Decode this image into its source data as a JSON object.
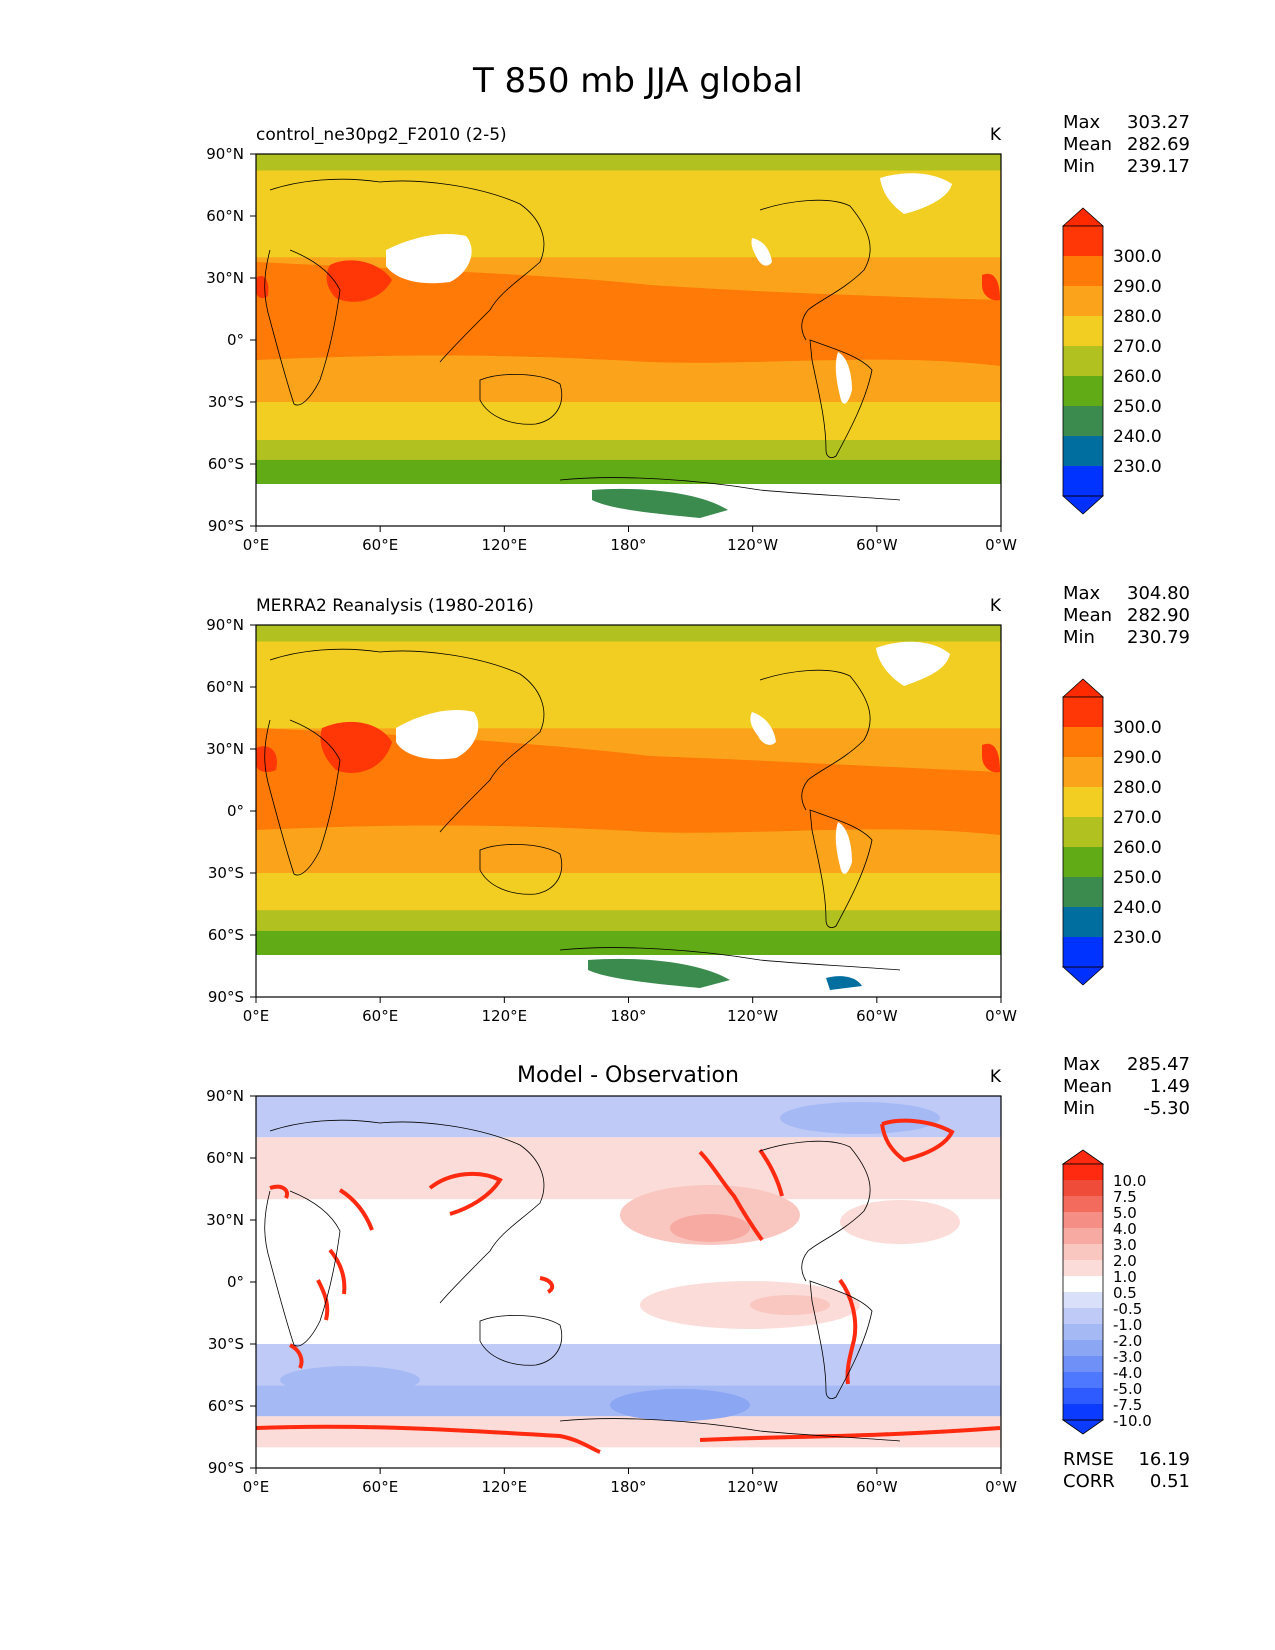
{
  "figure": {
    "title": "T 850 mb JJA global"
  },
  "colors": {
    "abs_levels": [
      "#0033ff",
      "#006fa0",
      "#3b8b4f",
      "#61ab17",
      "#b1c11f",
      "#f2ce22",
      "#fba31b",
      "#ff7a06",
      "#ff3606"
    ],
    "abs_over": "#ff2a00",
    "abs_under": "#0030ff",
    "diff_levels": [
      "#0a3bff",
      "#2d5bff",
      "#4e78ff",
      "#6e90f7",
      "#8ba6f3",
      "#a5b9f5",
      "#bfcaf6",
      "#d8e0fa",
      "#ffffff",
      "#fbdcd8",
      "#f9c6c0",
      "#f7aaa2",
      "#f58e84",
      "#f26b5c",
      "#f04c3a",
      "#ff2a10"
    ],
    "land_line": "#000000"
  },
  "chart_data": [
    {
      "type": "heatmap",
      "name": "model",
      "title_left": "control_ne30pg2_F2010 (2-5)",
      "title_center": "",
      "units": "K",
      "stats": {
        "Max": "303.27",
        "Mean": "282.69",
        "Min": "239.17"
      },
      "stat_labels": [
        "Max",
        "Mean",
        "Min"
      ],
      "x_ticks": [
        "0°E",
        "60°E",
        "120°E",
        "180°",
        "120°W",
        "60°W",
        "0°W"
      ],
      "y_ticks": [
        "90°N",
        "60°N",
        "30°N",
        "0°",
        "30°S",
        "60°S",
        "90°S"
      ],
      "colorbar_ticks": [
        "300.0",
        "290.0",
        "280.0",
        "270.0",
        "260.0",
        "250.0",
        "240.0",
        "230.0"
      ],
      "xlim": [
        0,
        360
      ],
      "ylim": [
        -90,
        90
      ],
      "bands_lat_top_to_bottom": [
        {
          "lat_range": [
            82,
            90
          ],
          "value": 265
        },
        {
          "lat_range": [
            40,
            82
          ],
          "value": 275
        },
        {
          "lat_range": [
            15,
            40
          ],
          "value": 285
        },
        {
          "lat_range": [
            -15,
            15
          ],
          "value": 288
        },
        {
          "lat_range": [
            -30,
            -15
          ],
          "value": 283
        },
        {
          "lat_range": [
            -48,
            -30
          ],
          "value": 275
        },
        {
          "lat_range": [
            -58,
            -48
          ],
          "value": 265
        },
        {
          "lat_range": [
            -72,
            -58
          ],
          "value": 255
        },
        {
          "lat_range": [
            -80,
            -72
          ],
          "value": 245
        }
      ]
    },
    {
      "type": "heatmap",
      "name": "observation",
      "title_left": "MERRA2 Reanalysis (1980-2016)",
      "title_center": "",
      "units": "K",
      "stats": {
        "Max": "304.80",
        "Mean": "282.90",
        "Min": "230.79"
      },
      "stat_labels": [
        "Max",
        "Mean",
        "Min"
      ],
      "x_ticks": [
        "0°E",
        "60°E",
        "120°E",
        "180°",
        "120°W",
        "60°W",
        "0°W"
      ],
      "y_ticks": [
        "90°N",
        "60°N",
        "30°N",
        "0°",
        "30°S",
        "60°S",
        "90°S"
      ],
      "colorbar_ticks": [
        "300.0",
        "290.0",
        "280.0",
        "270.0",
        "260.0",
        "250.0",
        "240.0",
        "230.0"
      ],
      "xlim": [
        0,
        360
      ],
      "ylim": [
        -90,
        90
      ],
      "bands_lat_top_to_bottom": [
        {
          "lat_range": [
            82,
            90
          ],
          "value": 265
        },
        {
          "lat_range": [
            40,
            82
          ],
          "value": 275
        },
        {
          "lat_range": [
            15,
            40
          ],
          "value": 285
        },
        {
          "lat_range": [
            -15,
            15
          ],
          "value": 288
        },
        {
          "lat_range": [
            -30,
            -15
          ],
          "value": 283
        },
        {
          "lat_range": [
            -48,
            -30
          ],
          "value": 275
        },
        {
          "lat_range": [
            -58,
            -48
          ],
          "value": 265
        },
        {
          "lat_range": [
            -72,
            -58
          ],
          "value": 255
        },
        {
          "lat_range": [
            -80,
            -72
          ],
          "value": 245
        }
      ]
    },
    {
      "type": "heatmap",
      "name": "difference",
      "title_left": "",
      "title_center": "Model - Observation",
      "units": "K",
      "stats": {
        "Max": "285.47",
        "Mean": "1.49",
        "Min": "-5.30"
      },
      "stat_labels": [
        "Max",
        "Mean",
        "Min"
      ],
      "extra_stats": {
        "RMSE": "16.19",
        "CORR": "0.51"
      },
      "extra_stat_labels": [
        "RMSE",
        "CORR"
      ],
      "x_ticks": [
        "0°E",
        "60°E",
        "120°E",
        "180°",
        "120°W",
        "60°W",
        "0°W"
      ],
      "y_ticks": [
        "90°N",
        "60°N",
        "30°N",
        "0°",
        "30°S",
        "60°S",
        "90°S"
      ],
      "colorbar_ticks": [
        "10.0",
        "7.5",
        "5.0",
        "4.0",
        "3.0",
        "2.0",
        "1.0",
        "0.5",
        "-0.5",
        "-1.0",
        "-2.0",
        "-3.0",
        "-4.0",
        "-5.0",
        "-7.5",
        "-10.0"
      ],
      "xlim": [
        0,
        360
      ],
      "ylim": [
        -90,
        90
      ],
      "bands_lat_top_to_bottom": [
        {
          "lat_range": [
            70,
            90
          ],
          "value": -1.5
        },
        {
          "lat_range": [
            40,
            70
          ],
          "value": 0.8
        },
        {
          "lat_range": [
            20,
            40
          ],
          "value": 0.3
        },
        {
          "lat_range": [
            -10,
            20
          ],
          "value": -0.2
        },
        {
          "lat_range": [
            -30,
            -10
          ],
          "value": 0.0
        },
        {
          "lat_range": [
            -50,
            -30
          ],
          "value": -1.5
        },
        {
          "lat_range": [
            -65,
            -50
          ],
          "value": -2.5
        },
        {
          "lat_range": [
            -80,
            -65
          ],
          "value": 0.6
        }
      ]
    }
  ]
}
